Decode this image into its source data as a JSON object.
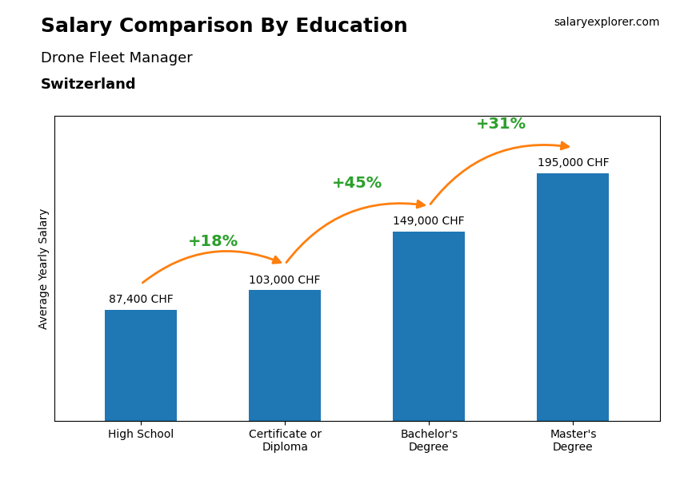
{
  "chart_data": {
    "type": "bar",
    "title": "Salary Comparison By Education",
    "subtitle": [
      "Drone Fleet Manager",
      "Switzerland"
    ],
    "ylabel": "Average Yearly Salary",
    "categories": [
      "High School",
      "Certificate or\nDiploma",
      "Bachelor's\nDegree",
      "Master's\nDegree"
    ],
    "values": [
      87400,
      103000,
      149000,
      195000
    ],
    "value_labels": [
      "87,400 CHF",
      "103,000 CHF",
      "149,000 CHF",
      "195,000 CHF"
    ],
    "data_labels": true,
    "ylim": [
      0,
      240000
    ],
    "tick_labels": "x",
    "annotations": [
      {
        "text": "+18%",
        "from": 0,
        "to": 1
      },
      {
        "text": "+45%",
        "from": 1,
        "to": 2
      },
      {
        "text": "+31%",
        "from": 2,
        "to": 3
      },
      {
        "text": "salaryexplorer.com"
      }
    ]
  }
}
